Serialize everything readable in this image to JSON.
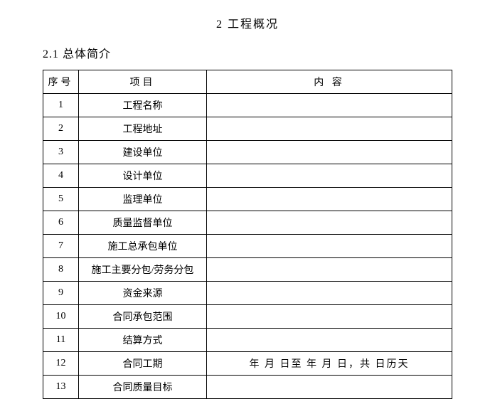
{
  "title": "2 工程概况",
  "section": "2.1 总体简介",
  "table": {
    "headers": {
      "seq": "序号",
      "item": "项目",
      "content": "内 容"
    },
    "rows": [
      {
        "seq": "1",
        "item": "工程名称",
        "content": ""
      },
      {
        "seq": "2",
        "item": "工程地址",
        "content": ""
      },
      {
        "seq": "3",
        "item": "建设单位",
        "content": ""
      },
      {
        "seq": "4",
        "item": "设计单位",
        "content": ""
      },
      {
        "seq": "5",
        "item": "监理单位",
        "content": ""
      },
      {
        "seq": "6",
        "item": "质量监督单位",
        "content": ""
      },
      {
        "seq": "7",
        "item": "施工总承包单位",
        "content": ""
      },
      {
        "seq": "8",
        "item": "施工主要分包/劳务分包",
        "content": ""
      },
      {
        "seq": "9",
        "item": "资金来源",
        "content": ""
      },
      {
        "seq": "10",
        "item": "合同承包范围",
        "content": ""
      },
      {
        "seq": "11",
        "item": "结算方式",
        "content": ""
      },
      {
        "seq": "12",
        "item": "合同工期",
        "content": "年  月  日至  年  月  日，共  日历天"
      },
      {
        "seq": "13",
        "item": "合同质量目标",
        "content": ""
      }
    ]
  }
}
